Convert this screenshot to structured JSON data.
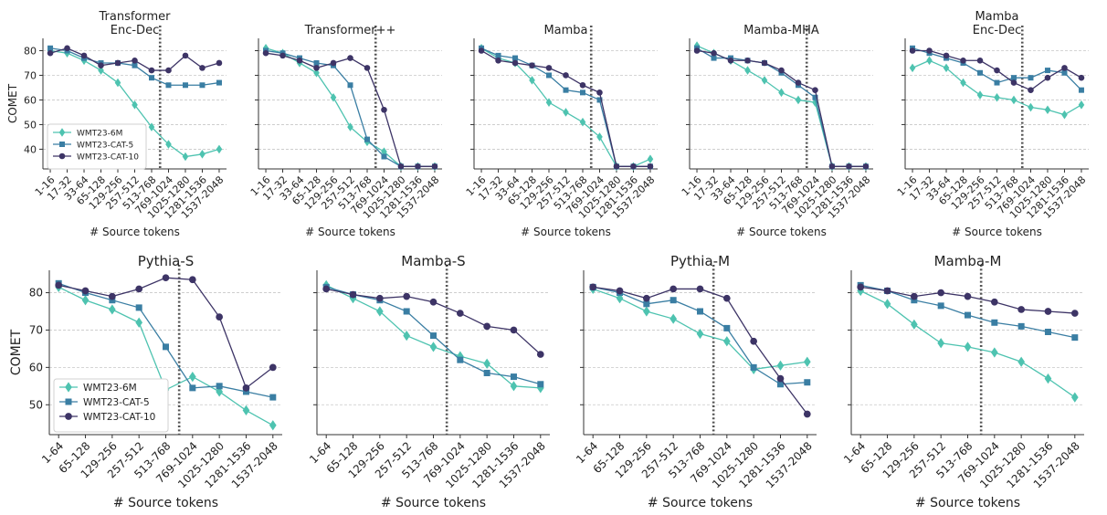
{
  "figure": {
    "ylabel": "COMET",
    "xlabel": "# Source tokens",
    "series_colors": {
      "WMT23-6M": "#4ec3b0",
      "WMT23-CAT-5": "#3a7ea3",
      "WMT23-CAT-10": "#3d3466"
    },
    "series_markers": {
      "WMT23-6M": "diamond",
      "WMT23-CAT-5": "square",
      "WMT23-CAT-10": "circle"
    },
    "divider_style": "dotted gray vertical line at 769-1024 boundary"
  },
  "chart_data": [
    {
      "type": "line",
      "title_lines": [
        "Transformer",
        "Enc-Dec"
      ],
      "categories": [
        "1-16",
        "17-32",
        "33-64",
        "65-128",
        "129-256",
        "257-512",
        "513-768",
        "769-1024",
        "1025-1280",
        "1281-1536",
        "1537-2048"
      ],
      "divider_after": "513-768",
      "ylim": [
        32,
        85
      ],
      "yticks": [
        40,
        50,
        60,
        70,
        80
      ],
      "show_yticks": true,
      "show_ylabel": true,
      "legend": true,
      "series": [
        {
          "name": "WMT23-6M",
          "values": [
            80,
            79,
            76,
            72,
            67,
            58,
            49,
            42,
            37,
            38,
            40
          ]
        },
        {
          "name": "WMT23-CAT-5",
          "values": [
            81,
            80,
            77,
            75,
            75,
            74,
            69,
            66,
            66,
            66,
            67
          ]
        },
        {
          "name": "WMT23-CAT-10",
          "values": [
            79,
            81,
            78,
            74,
            75,
            76,
            72,
            72,
            78,
            73,
            75
          ]
        }
      ]
    },
    {
      "type": "line",
      "title_lines": [
        "Transformer++"
      ],
      "categories": [
        "1-16",
        "17-32",
        "33-64",
        "65-128",
        "129-256",
        "257-512",
        "513-768",
        "769-1024",
        "1025-1280",
        "1281-1536",
        "1537-2048"
      ],
      "divider_after": "513-768",
      "ylim": [
        32,
        85
      ],
      "yticks": [
        40,
        50,
        60,
        70,
        80
      ],
      "show_yticks": false,
      "show_ylabel": false,
      "legend": false,
      "series": [
        {
          "name": "WMT23-6M",
          "values": [
            81,
            79,
            75,
            71,
            61,
            49,
            43,
            39,
            33,
            33,
            33
          ]
        },
        {
          "name": "WMT23-CAT-5",
          "values": [
            80,
            79,
            77,
            75,
            74,
            66,
            44,
            37,
            33,
            33,
            33
          ]
        },
        {
          "name": "WMT23-CAT-10",
          "values": [
            79,
            78,
            76,
            73,
            75,
            77,
            73,
            56,
            33,
            33,
            33
          ]
        }
      ]
    },
    {
      "type": "line",
      "title_lines": [
        "Mamba"
      ],
      "categories": [
        "1-16",
        "17-32",
        "33-64",
        "65-128",
        "129-256",
        "257-512",
        "513-768",
        "769-1024",
        "1025-1280",
        "1281-1536",
        "1537-2048"
      ],
      "divider_after": "513-768",
      "ylim": [
        32,
        85
      ],
      "yticks": [
        40,
        50,
        60,
        70,
        80
      ],
      "show_yticks": false,
      "show_ylabel": false,
      "legend": false,
      "series": [
        {
          "name": "WMT23-6M",
          "values": [
            81,
            77,
            75,
            68,
            59,
            55,
            51,
            45,
            33,
            33,
            36
          ]
        },
        {
          "name": "WMT23-CAT-5",
          "values": [
            81,
            78,
            77,
            74,
            70,
            64,
            63,
            60,
            33,
            33,
            33
          ]
        },
        {
          "name": "WMT23-CAT-10",
          "values": [
            80,
            76,
            75,
            74,
            73,
            70,
            66,
            63,
            33,
            33,
            33
          ]
        }
      ]
    },
    {
      "type": "line",
      "title_lines": [
        "Mamba-MHA"
      ],
      "categories": [
        "1-16",
        "17-32",
        "33-64",
        "65-128",
        "129-256",
        "257-512",
        "513-768",
        "769-1024",
        "1025-1280",
        "1281-1536",
        "1537-2048"
      ],
      "divider_after": "513-768",
      "ylim": [
        32,
        85
      ],
      "yticks": [
        40,
        50,
        60,
        70,
        80
      ],
      "show_yticks": false,
      "show_ylabel": false,
      "legend": false,
      "series": [
        {
          "name": "WMT23-6M",
          "values": [
            82,
            79,
            76,
            72,
            68,
            63,
            60,
            59,
            33,
            33,
            33
          ]
        },
        {
          "name": "WMT23-CAT-5",
          "values": [
            81,
            77,
            77,
            76,
            75,
            71,
            66,
            61,
            33,
            33,
            33
          ]
        },
        {
          "name": "WMT23-CAT-10",
          "values": [
            80,
            79,
            76,
            76,
            75,
            72,
            67,
            64,
            33,
            33,
            33
          ]
        }
      ]
    },
    {
      "type": "line",
      "title_lines": [
        "Mamba",
        "Enc-Dec"
      ],
      "categories": [
        "1-16",
        "17-32",
        "33-64",
        "65-128",
        "129-256",
        "257-512",
        "513-768",
        "769-1024",
        "1025-1280",
        "1281-1536",
        "1537-2048"
      ],
      "divider_after": "513-768",
      "ylim": [
        32,
        85
      ],
      "yticks": [
        40,
        50,
        60,
        70,
        80
      ],
      "show_yticks": false,
      "show_ylabel": false,
      "legend": false,
      "series": [
        {
          "name": "WMT23-6M",
          "values": [
            73,
            76,
            73,
            67,
            62,
            61,
            60,
            57,
            56,
            54,
            58
          ]
        },
        {
          "name": "WMT23-CAT-5",
          "values": [
            81,
            79,
            77,
            75,
            71,
            67,
            69,
            69,
            72,
            71,
            64
          ]
        },
        {
          "name": "WMT23-CAT-10",
          "values": [
            80,
            80,
            78,
            76,
            76,
            72,
            67,
            64,
            69,
            73,
            69
          ]
        }
      ]
    },
    {
      "type": "line",
      "title_lines": [
        "Pythia-S"
      ],
      "categories": [
        "1-64",
        "65-128",
        "129-256",
        "257-512",
        "513-768",
        "769-1024",
        "1025-1280",
        "1281-1536",
        "1537-2048"
      ],
      "divider_after": "513-768",
      "ylim": [
        42,
        86
      ],
      "yticks": [
        50,
        60,
        70,
        80
      ],
      "show_yticks": true,
      "show_ylabel": true,
      "legend": true,
      "series": [
        {
          "name": "WMT23-6M",
          "values": [
            81.5,
            78,
            75.5,
            72,
            54,
            57.5,
            53.5,
            48.5,
            44.5
          ]
        },
        {
          "name": "WMT23-CAT-5",
          "values": [
            82.5,
            80,
            78,
            76,
            65.5,
            54.5,
            55,
            53.5,
            52
          ]
        },
        {
          "name": "WMT23-CAT-10",
          "values": [
            82,
            80.5,
            79,
            81,
            84,
            83.5,
            73.5,
            54.5,
            60
          ]
        }
      ]
    },
    {
      "type": "line",
      "title_lines": [
        "Mamba-S"
      ],
      "categories": [
        "1-64",
        "65-128",
        "129-256",
        "257-512",
        "513-768",
        "769-1024",
        "1025-1280",
        "1281-1536",
        "1537-2048"
      ],
      "divider_after": "513-768",
      "ylim": [
        42,
        86
      ],
      "yticks": [
        50,
        60,
        70,
        80
      ],
      "show_yticks": false,
      "show_ylabel": false,
      "legend": false,
      "series": [
        {
          "name": "WMT23-6M",
          "values": [
            82,
            78.5,
            75,
            68.5,
            65.5,
            63,
            61,
            55,
            54.5
          ]
        },
        {
          "name": "WMT23-CAT-5",
          "values": [
            81.5,
            79.5,
            78,
            75,
            68.5,
            62,
            58.5,
            57.5,
            55.5
          ]
        },
        {
          "name": "WMT23-CAT-10",
          "values": [
            81,
            79.5,
            78.5,
            79,
            77.5,
            74.5,
            71,
            70,
            63.5
          ]
        }
      ]
    },
    {
      "type": "line",
      "title_lines": [
        "Pythia-M"
      ],
      "categories": [
        "1-64",
        "65-128",
        "129-256",
        "257-512",
        "513-768",
        "769-1024",
        "1025-1280",
        "1281-1536",
        "1537-2048"
      ],
      "divider_after": "513-768",
      "ylim": [
        42,
        86
      ],
      "yticks": [
        50,
        60,
        70,
        80
      ],
      "show_yticks": false,
      "show_ylabel": false,
      "legend": false,
      "series": [
        {
          "name": "WMT23-6M",
          "values": [
            81,
            78.5,
            75,
            73,
            69,
            67,
            59.5,
            60.5,
            61.5
          ]
        },
        {
          "name": "WMT23-CAT-5",
          "values": [
            81.5,
            80,
            77,
            78,
            75,
            70.5,
            60,
            55.5,
            56
          ]
        },
        {
          "name": "WMT23-CAT-10",
          "values": [
            81.5,
            80.5,
            78.5,
            81,
            81,
            78.5,
            67,
            57,
            47.5
          ]
        }
      ]
    },
    {
      "type": "line",
      "title_lines": [
        "Mamba-M"
      ],
      "categories": [
        "1-64",
        "65-128",
        "129-256",
        "257-512",
        "513-768",
        "769-1024",
        "1025-1280",
        "1281-1536",
        "1537-2048"
      ],
      "divider_after": "513-768",
      "ylim": [
        42,
        86
      ],
      "yticks": [
        50,
        60,
        70,
        80
      ],
      "show_yticks": false,
      "show_ylabel": false,
      "legend": false,
      "series": [
        {
          "name": "WMT23-6M",
          "values": [
            80.5,
            77,
            71.5,
            66.5,
            65.5,
            64,
            61.5,
            57,
            52
          ]
        },
        {
          "name": "WMT23-CAT-5",
          "values": [
            82,
            80.5,
            78,
            76.5,
            74,
            72,
            71,
            69.5,
            68
          ]
        },
        {
          "name": "WMT23-CAT-10",
          "values": [
            81.5,
            80.5,
            79,
            80,
            79,
            77.5,
            75.5,
            75,
            74.5
          ]
        }
      ]
    }
  ]
}
